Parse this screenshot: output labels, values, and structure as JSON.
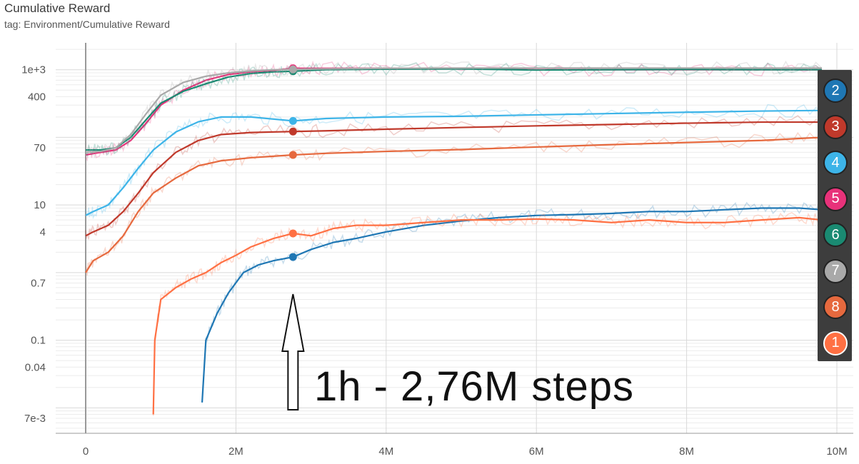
{
  "header": {
    "title": "Cumulative Reward",
    "tag": "tag: Environment/Cumulative Reward"
  },
  "annotation": {
    "text": "1h - 2,76M steps",
    "x_step": 2760000
  },
  "chart_data": {
    "type": "line",
    "title": "Cumulative Reward",
    "subtitle": "tag: Environment/Cumulative Reward",
    "y_scale": "log",
    "xlim": [
      0,
      10000000
    ],
    "x_ticks": [
      {
        "value": 0,
        "label": "0"
      },
      {
        "value": 2000000,
        "label": "2M"
      },
      {
        "value": 4000000,
        "label": "4M"
      },
      {
        "value": 6000000,
        "label": "6M"
      },
      {
        "value": 8000000,
        "label": "8M"
      },
      {
        "value": 10000000,
        "label": "10M"
      }
    ],
    "y_ticks": [
      {
        "value": 1000,
        "label": "1e+3"
      },
      {
        "value": 400,
        "label": "400"
      },
      {
        "value": 70,
        "label": "70"
      },
      {
        "value": 10,
        "label": "10"
      },
      {
        "value": 4,
        "label": "4"
      },
      {
        "value": 0.7,
        "label": "0.7"
      },
      {
        "value": 0.1,
        "label": "0.1"
      },
      {
        "value": 0.04,
        "label": "0.04"
      },
      {
        "value": 0.007,
        "label": "7e-3"
      }
    ],
    "grid": true,
    "legend_position": "right",
    "series": [
      {
        "name": "2",
        "color": "#1f77b4",
        "x": [
          1.55,
          1.6,
          1.75,
          1.9,
          2.1,
          2.3,
          2.5,
          2.76,
          3.0,
          3.3,
          3.6,
          4.0,
          4.5,
          5.0,
          5.5,
          6.0,
          6.5,
          7.0,
          7.5,
          8.0,
          8.5,
          9.0,
          9.5,
          9.8
        ],
        "y": [
          0.012,
          0.1,
          0.25,
          0.5,
          1.0,
          1.3,
          1.5,
          1.7,
          2.2,
          2.8,
          3.2,
          4.0,
          5.0,
          5.8,
          6.5,
          7.0,
          7.2,
          7.5,
          8.0,
          8.0,
          8.5,
          9.0,
          9.0,
          8.5
        ]
      },
      {
        "name": "3",
        "color": "#c0392b",
        "x": [
          0.0,
          0.1,
          0.3,
          0.5,
          0.7,
          0.9,
          1.2,
          1.5,
          1.8,
          2.2,
          2.76,
          3.2,
          4.0,
          5.0,
          6.0,
          7.0,
          8.0,
          9.0,
          9.8
        ],
        "y": [
          3.5,
          4.0,
          5.0,
          8.0,
          15,
          30,
          60,
          90,
          110,
          118,
          122,
          125,
          132,
          140,
          148,
          155,
          162,
          168,
          168
        ]
      },
      {
        "name": "4",
        "color": "#3db4e8",
        "x": [
          0.0,
          0.1,
          0.3,
          0.5,
          0.7,
          0.9,
          1.2,
          1.5,
          1.8,
          2.2,
          2.76,
          3.2,
          4.0,
          5.0,
          6.0,
          7.0,
          8.0,
          9.0,
          9.8
        ],
        "y": [
          7.0,
          8.0,
          10,
          18,
          35,
          65,
          120,
          170,
          200,
          200,
          175,
          190,
          200,
          205,
          215,
          225,
          235,
          245,
          250
        ]
      },
      {
        "name": "5",
        "color": "#e8327a",
        "x": [
          0.0,
          0.2,
          0.4,
          0.6,
          0.8,
          1.0,
          1.3,
          1.6,
          1.9,
          2.2,
          2.5,
          2.76,
          3.2,
          4.0,
          5.0,
          6.0,
          7.0,
          8.0,
          9.0,
          9.8
        ],
        "y": [
          55,
          60,
          65,
          90,
          160,
          300,
          500,
          700,
          850,
          930,
          980,
          1050,
          1050,
          1050,
          1050,
          1000,
          1000,
          1000,
          1000,
          1000
        ]
      },
      {
        "name": "6",
        "color": "#1a8a72",
        "x": [
          0.0,
          0.2,
          0.4,
          0.6,
          0.8,
          1.0,
          1.3,
          1.6,
          1.9,
          2.2,
          2.5,
          2.76,
          3.2,
          4.0,
          5.0,
          6.0,
          7.0,
          8.0,
          9.0,
          9.8
        ],
        "y": [
          65,
          65,
          70,
          100,
          180,
          320,
          480,
          620,
          780,
          880,
          930,
          950,
          1000,
          1020,
          1030,
          990,
          1000,
          1010,
          1000,
          1000
        ]
      },
      {
        "name": "7",
        "color": "#a9a9a9",
        "x": [
          0.0,
          0.2,
          0.4,
          0.6,
          0.8,
          1.0,
          1.3,
          1.6,
          1.9,
          2.2,
          2.5,
          2.76,
          3.2,
          4.0,
          5.0,
          6.0,
          7.0,
          8.0,
          9.0,
          9.8
        ],
        "y": [
          60,
          62,
          70,
          110,
          220,
          420,
          650,
          800,
          900,
          960,
          1000,
          1010,
          1030,
          1050,
          1060,
          1060,
          1060,
          1060,
          1060,
          1060
        ]
      },
      {
        "name": "8",
        "color": "#e6693e",
        "x": [
          0.0,
          0.1,
          0.3,
          0.5,
          0.7,
          0.9,
          1.2,
          1.5,
          1.8,
          2.2,
          2.76,
          3.2,
          4.0,
          5.0,
          6.0,
          7.0,
          8.0,
          9.0,
          9.8
        ],
        "y": [
          1.0,
          1.5,
          2.0,
          3.5,
          8.0,
          15,
          25,
          38,
          45,
          50,
          55,
          58,
          62,
          66,
          72,
          78,
          84,
          90,
          100
        ]
      },
      {
        "name": "1",
        "color": "#ff7043",
        "x": [
          0.9,
          0.92,
          1.0,
          1.2,
          1.4,
          1.6,
          1.8,
          2.0,
          2.2,
          2.5,
          2.76,
          3.0,
          3.3,
          3.6,
          4.0,
          4.5,
          5.0,
          5.5,
          6.0,
          6.5,
          7.0,
          7.5,
          8.0,
          8.5,
          9.0,
          9.5,
          9.8
        ],
        "y": [
          0.008,
          0.1,
          0.4,
          0.6,
          0.8,
          1.0,
          1.4,
          1.8,
          2.4,
          3.2,
          3.8,
          3.5,
          4.5,
          5.0,
          5.0,
          5.5,
          6.0,
          6.0,
          6.2,
          6.0,
          5.5,
          6.0,
          5.5,
          5.5,
          6.0,
          6.5,
          6.0
        ]
      }
    ],
    "markers_at_step": 2760000
  }
}
